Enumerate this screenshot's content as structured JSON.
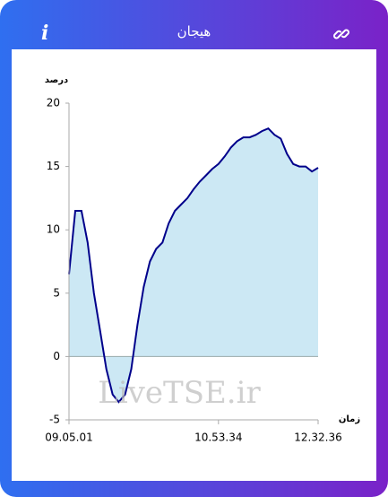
{
  "header": {
    "title": "هیجان",
    "info_icon": "i"
  },
  "chart_data": {
    "type": "area",
    "ylabel": "درصد",
    "xlabel": "زمان",
    "watermark": "LiveTSE.ir",
    "categories": [
      "09.05.01",
      null,
      null,
      null,
      null,
      null,
      null,
      null,
      null,
      null,
      null,
      null,
      null,
      null,
      null,
      null,
      null,
      null,
      null,
      null,
      null,
      null,
      null,
      null,
      "10.53.34",
      null,
      null,
      null,
      null,
      null,
      null,
      null,
      null,
      null,
      null,
      null,
      null,
      null,
      null,
      null,
      "12.32.36"
    ],
    "values": [
      6.5,
      11.5,
      11.5,
      9,
      5,
      2,
      -1,
      -3,
      -3.6,
      -3,
      -1,
      2.5,
      5.5,
      7.5,
      8.5,
      9,
      10.5,
      11.5,
      12,
      12.5,
      13.2,
      13.8,
      14.3,
      14.8,
      15.2,
      15.8,
      16.5,
      17,
      17.3,
      17.3,
      17.5,
      17.8,
      18,
      17.5,
      17.2,
      16,
      15.2,
      15,
      15,
      14.6,
      14.9
    ],
    "color": "#00008b",
    "area_color": "#cce8f4",
    "ylim": [
      -5,
      20
    ],
    "yticks": [
      -5,
      0,
      5,
      10,
      15,
      20
    ]
  }
}
